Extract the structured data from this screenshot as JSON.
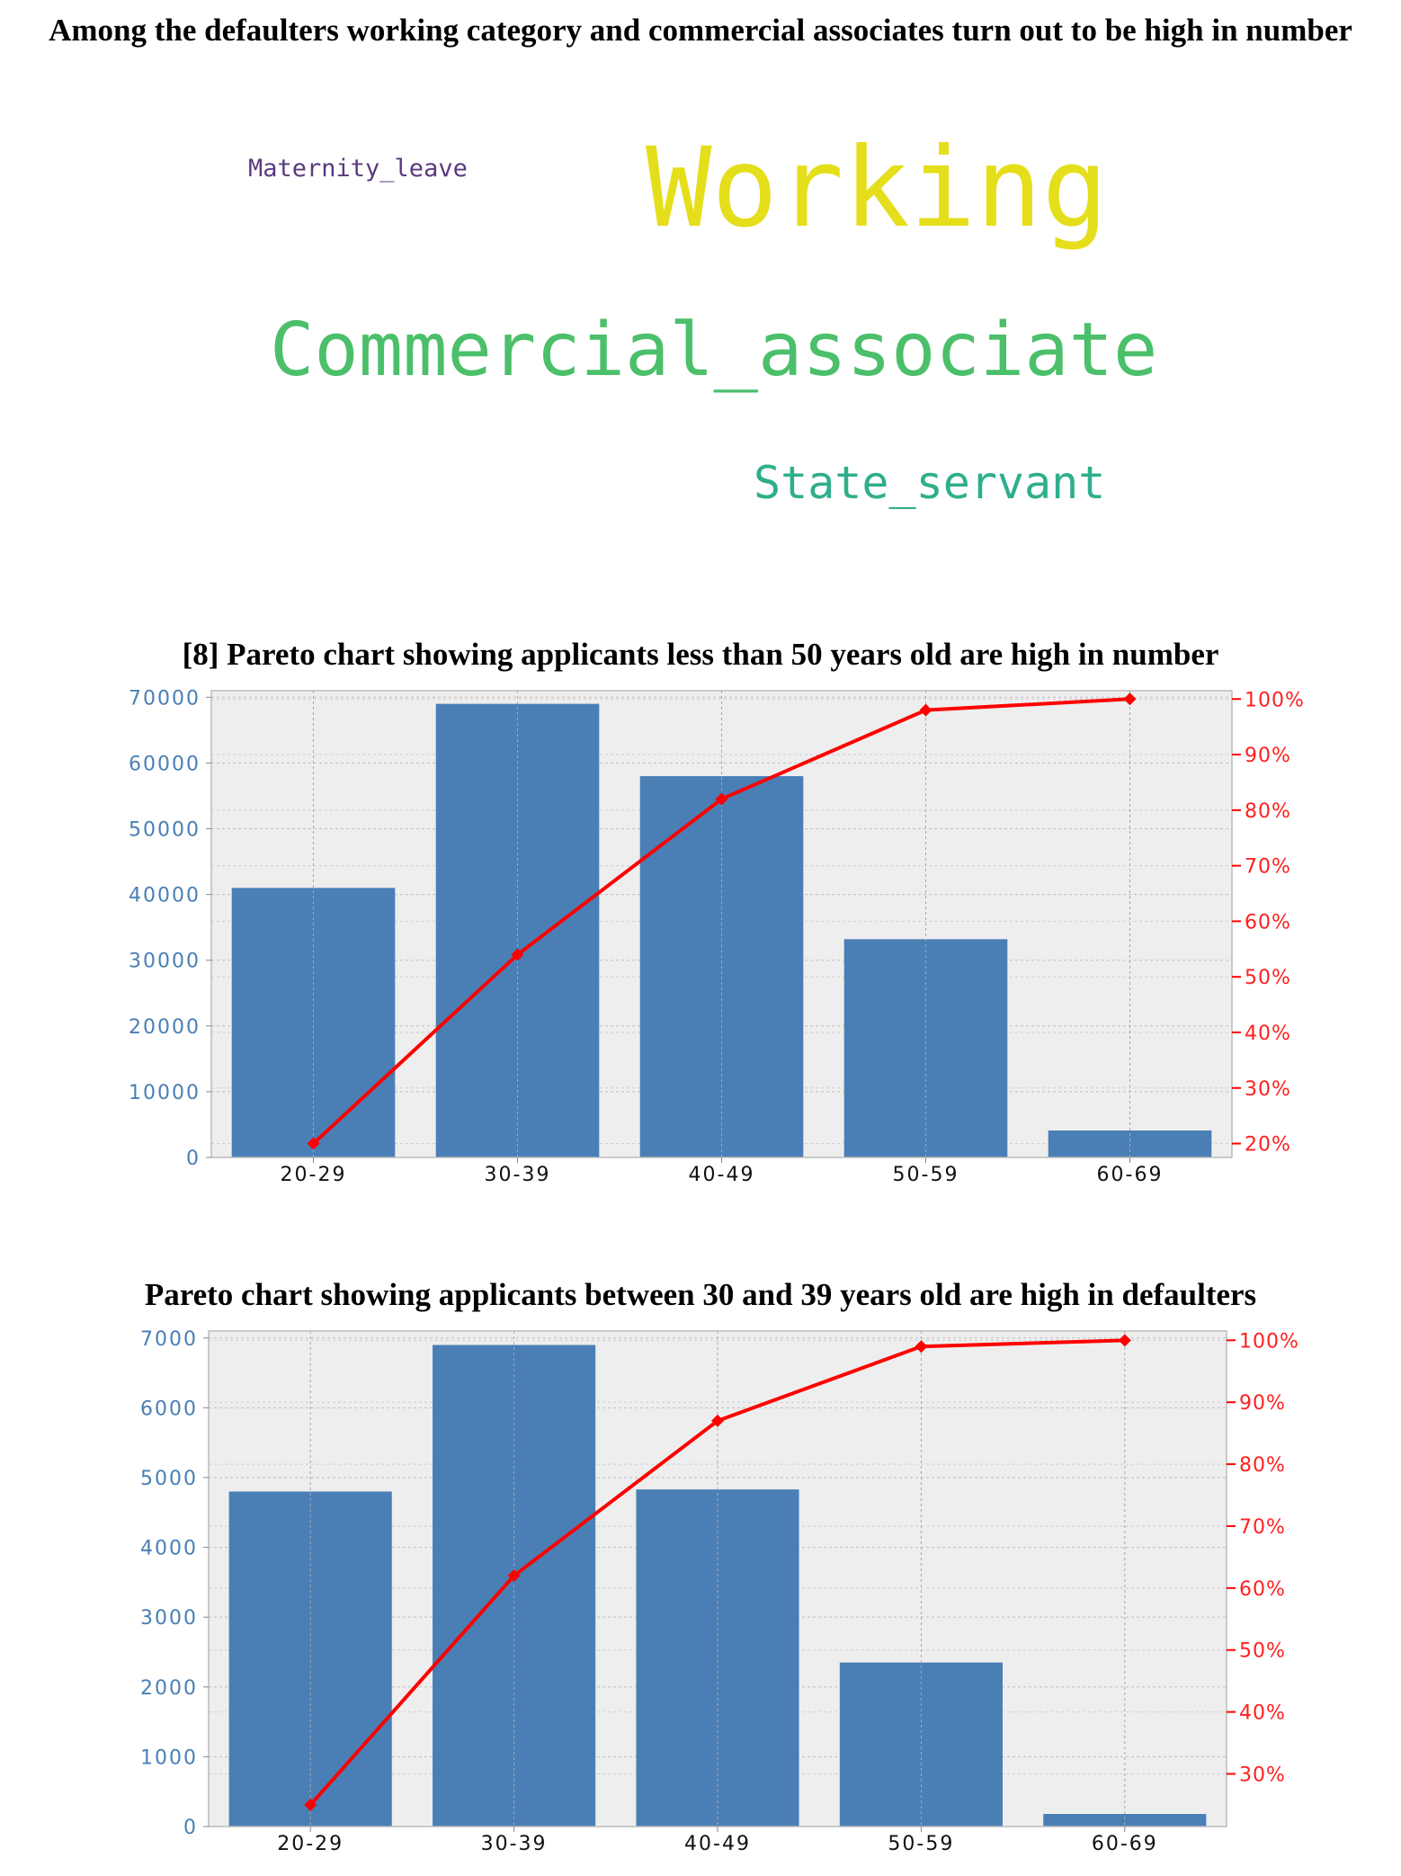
{
  "wordcloud": {
    "title": "Among the defaulters working category and commercial associates turn out to be high in number",
    "words": {
      "maternity_leave": "Maternity_leave",
      "working": "Working",
      "commercial_associate": "Commercial_associate",
      "state_servant": "State_servant"
    },
    "colors": {
      "maternity_leave": "#5a3a7d",
      "working": "#e5de1a",
      "commercial_associate": "#4bbf6a",
      "state_servant": "#2fae8c"
    }
  },
  "chart_data": [
    {
      "type": "bar",
      "title": "[8] Pareto chart showing applicants less than 50 years old are high in number",
      "categories": [
        "20-29",
        "30-39",
        "40-49",
        "50-59",
        "60-69"
      ],
      "series": [
        {
          "values": [
            41000,
            69000,
            58000,
            33200,
            4100
          ],
          "axis": "left",
          "color": "#4a7fb5"
        },
        {
          "type": "line",
          "values": [
            20,
            54,
            82,
            98,
            100
          ],
          "axis": "right",
          "color": "#ff0000"
        }
      ],
      "ylim": [
        0,
        71000
      ],
      "yticks": [
        0,
        10000,
        20000,
        30000,
        40000,
        50000,
        60000,
        70000
      ],
      "ylim_right": [
        17.5,
        101.5
      ],
      "yticks_right": [
        20,
        30,
        40,
        50,
        60,
        70,
        80,
        90,
        100
      ],
      "ytick_right_labels": [
        "20%",
        "30%",
        "40%",
        "50%",
        "60%",
        "70%",
        "80%",
        "90%",
        "100%"
      ],
      "grid": true,
      "background": "#eeeeee"
    },
    {
      "type": "bar",
      "title": "Pareto chart showing applicants between 30 and 39 years old are high in defaulters",
      "categories": [
        "20-29",
        "30-39",
        "40-49",
        "50-59",
        "60-69"
      ],
      "series": [
        {
          "values": [
            4800,
            6900,
            4830,
            2350,
            180
          ],
          "axis": "left",
          "color": "#4a7fb5"
        },
        {
          "type": "line",
          "values": [
            25,
            62,
            87,
            99,
            100
          ],
          "axis": "right",
          "color": "#ff0000"
        }
      ],
      "ylim": [
        0,
        7100
      ],
      "yticks": [
        0,
        1000,
        2000,
        3000,
        4000,
        5000,
        6000,
        7000
      ],
      "ylim_right": [
        21.5,
        101.5
      ],
      "yticks_right": [
        30,
        40,
        50,
        60,
        70,
        80,
        90,
        100
      ],
      "ytick_right_labels": [
        "30%",
        "40%",
        "50%",
        "60%",
        "70%",
        "80%",
        "90%",
        "100%"
      ],
      "grid": true,
      "background": "#eeeeee"
    }
  ]
}
